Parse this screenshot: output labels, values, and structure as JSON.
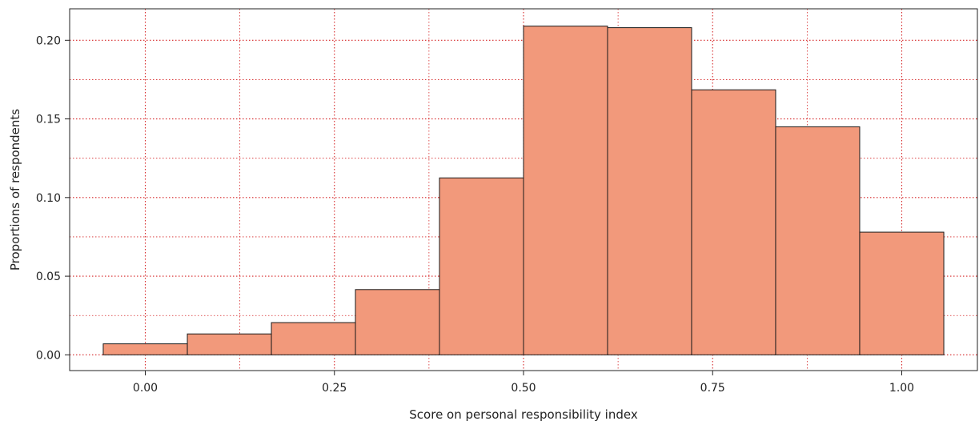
{
  "chart_data": {
    "type": "bar",
    "title": "",
    "xlabel": "Score on personal responsibility index",
    "ylabel": "Proportions of respondents",
    "xlim": [
      -0.1,
      1.1
    ],
    "ylim": [
      -0.01,
      0.22
    ],
    "x_ticks": [
      {
        "value": 0.0,
        "label": "0.00"
      },
      {
        "value": 0.25,
        "label": "0.25"
      },
      {
        "value": 0.5,
        "label": "0.50"
      },
      {
        "value": 0.75,
        "label": "0.75"
      },
      {
        "value": 1.0,
        "label": "1.00"
      }
    ],
    "y_ticks": [
      {
        "value": 0.0,
        "label": "0.00"
      },
      {
        "value": 0.05,
        "label": "0.05"
      },
      {
        "value": 0.1,
        "label": "0.10"
      },
      {
        "value": 0.15,
        "label": "0.15"
      },
      {
        "value": 0.2,
        "label": "0.20"
      }
    ],
    "grid": true,
    "grid_minor": true,
    "bins": [
      {
        "start": -0.0556,
        "end": 0.0556,
        "value": 0.007
      },
      {
        "start": 0.0556,
        "end": 0.1667,
        "value": 0.0133
      },
      {
        "start": 0.1667,
        "end": 0.2778,
        "value": 0.0205
      },
      {
        "start": 0.2778,
        "end": 0.3889,
        "value": 0.0415
      },
      {
        "start": 0.3889,
        "end": 0.5,
        "value": 0.1125
      },
      {
        "start": 0.5,
        "end": 0.6111,
        "value": 0.209
      },
      {
        "start": 0.6111,
        "end": 0.7222,
        "value": 0.208
      },
      {
        "start": 0.7222,
        "end": 0.8333,
        "value": 0.1685
      },
      {
        "start": 0.8333,
        "end": 0.9444,
        "value": 0.145
      },
      {
        "start": 0.9444,
        "end": 1.0556,
        "value": 0.078
      }
    ],
    "colors": {
      "bar_fill": "#F2997B",
      "bar_stroke": "#1a1a1a",
      "grid": "#D62728",
      "axis": "#222222"
    }
  }
}
